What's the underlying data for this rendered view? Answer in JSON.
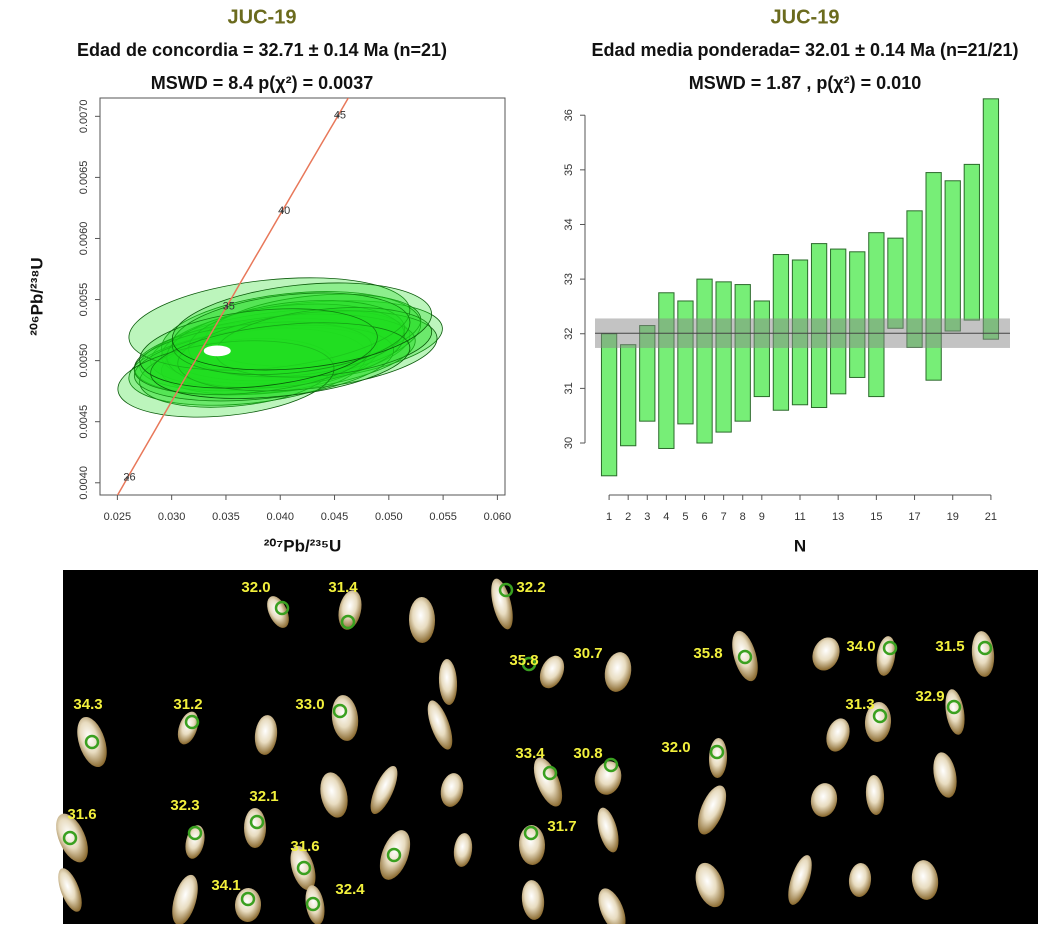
{
  "chart_data": [
    {
      "type": "concordia",
      "title": "JUC-19",
      "subtitle": "Edad de concordia = 32.71 ± 0.14 Ma (n=21)",
      "subtitle2": "MSWD = 8.4 p(χ²) = 0.0037",
      "xlabel": "²⁰⁷Pb/²³⁵U",
      "ylabel": "²⁰⁶Pb/²³⁸U",
      "xlim": [
        0.0234,
        0.0607
      ],
      "ylim": [
        0.0039,
        0.00715
      ],
      "xticks": [
        0.025,
        {
          "value": 0.03,
          "label": "0.030"
        },
        0.035,
        {
          "value": 0.04,
          "label": "0.040"
        },
        0.045,
        {
          "value": 0.05,
          "label": "0.050"
        },
        0.055,
        {
          "value": 0.06,
          "label": "0.060"
        }
      ],
      "yticks": [
        {
          "value": 0.004,
          "label": "0.0040"
        },
        0.0045,
        {
          "value": 0.005,
          "label": "0.0050"
        },
        0.0055,
        {
          "value": 0.006,
          "label": "0.0060"
        },
        0.0065,
        {
          "value": 0.007,
          "label": "0.0070"
        }
      ],
      "concordia_ticks": [
        26,
        35,
        40,
        45
      ],
      "concordia_color": "#e8785a",
      "ellipse_color": "#22dd22",
      "ellipses": {
        "x": [
          0.04,
          0.038,
          0.042,
          0.039,
          0.041,
          0.037,
          0.043,
          0.0395,
          0.036,
          0.0405,
          0.0385,
          0.0415,
          0.0375,
          0.0425,
          0.039,
          0.044,
          0.035,
          0.041,
          0.04,
          0.038,
          0.042
        ],
        "y": [
          0.0051,
          0.00505,
          0.00515,
          0.005,
          0.0052,
          0.00495,
          0.00525,
          0.00505,
          0.0049,
          0.00512,
          0.00498,
          0.00518,
          0.00502,
          0.00508,
          0.0053,
          0.00515,
          0.00485,
          0.00522,
          0.005,
          0.0051,
          0.00528
        ],
        "x_err": [
          0.012,
          0.011,
          0.013,
          0.01,
          0.012,
          0.011,
          0.01,
          0.013,
          0.009,
          0.011,
          0.012,
          0.01,
          0.011,
          0.012,
          0.013,
          0.01,
          0.01,
          0.011,
          0.012,
          0.011,
          0.012
        ],
        "y_err": [
          0.0003,
          0.00028,
          0.00032,
          0.00026,
          0.00035,
          0.0003,
          0.00028,
          0.00031,
          0.00027,
          0.00033,
          0.00029,
          0.0003,
          0.00028,
          0.00031,
          0.00036,
          0.00027,
          0.0003,
          0.00032,
          0.00029,
          0.00031,
          0.00034
        ]
      },
      "concordia_point": {
        "x": 0.0342,
        "y": 0.00508,
        "x_err": 0.0012,
        "y_err": 4e-05
      }
    },
    {
      "type": "floating_bar",
      "title": "JUC-19",
      "subtitle": "Edad media ponderada= 32.01 ± 0.14  Ma (n=21/21)",
      "subtitle2": "MSWD = 1.87 , p(χ²) = 0.010",
      "xlabel": "N",
      "xlim": [
        0,
        22
      ],
      "ylim": [
        29.14,
        36.37
      ],
      "xticks": [
        1,
        2,
        3,
        4,
        5,
        6,
        7,
        8,
        9,
        11,
        13,
        15,
        17,
        19,
        21
      ],
      "yticks": [
        30,
        31,
        32,
        33,
        34,
        35,
        36
      ],
      "x": [
        1,
        2,
        3,
        4,
        5,
        6,
        7,
        8,
        9,
        10,
        11,
        12,
        13,
        14,
        15,
        16,
        17,
        18,
        19,
        20,
        21
      ],
      "low": [
        29.4,
        29.95,
        30.4,
        29.9,
        30.35,
        30.0,
        30.2,
        30.4,
        30.85,
        30.6,
        30.7,
        30.65,
        30.9,
        31.2,
        30.85,
        32.1,
        31.75,
        31.15,
        32.05,
        32.25,
        31.9
      ],
      "high": [
        32.0,
        31.8,
        32.15,
        32.75,
        32.6,
        33.0,
        32.95,
        32.9,
        32.6,
        33.45,
        33.35,
        33.65,
        33.55,
        33.5,
        33.85,
        33.75,
        34.25,
        34.95,
        34.8,
        35.1,
        36.3
      ],
      "color": "#77ee77",
      "mean": 32.01,
      "band": [
        31.74,
        32.28
      ]
    }
  ],
  "image": {
    "labels": [
      "32.0",
      "31.4",
      "32.2",
      "35.8",
      "30.7",
      "35.8",
      "34.0",
      "31.5",
      "34.3",
      "31.2",
      "33.0",
      "31.3",
      "32.9",
      "33.4",
      "30.8",
      "32.0",
      "32.1",
      "31.6",
      "32.3",
      "31.7",
      "31.6",
      "34.1",
      "32.4"
    ]
  }
}
